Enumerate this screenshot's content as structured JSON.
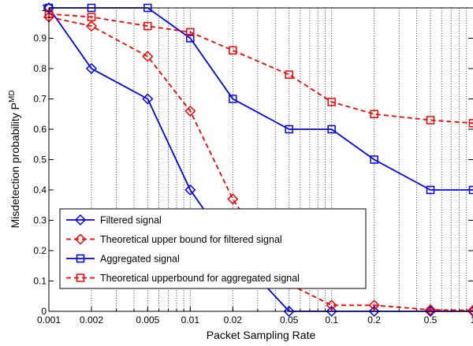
{
  "chart_data": {
    "type": "line",
    "xscale": "log",
    "xlim": [
      0.001,
      1
    ],
    "ylim": [
      0,
      1
    ],
    "grid": "x-major-and-minor-dotted",
    "legend_position": "bottom-left",
    "xlabel": "Packet Sampling Rate",
    "ylabel": "Misdetection probability P",
    "ylabel_superscript": "MD",
    "xticks": [
      0.001,
      0.002,
      0.005,
      0.01,
      0.02,
      0.05,
      0.1,
      0.2,
      0.5,
      1
    ],
    "xtick_labels": [
      "0.001",
      "0.002",
      "0.005",
      "0.01",
      "0.02",
      "0.05",
      "0.1",
      "0.2",
      "0.5",
      "1"
    ],
    "yticks": [
      0,
      0.1,
      0.2,
      0.3,
      0.4,
      0.5,
      0.6,
      0.7,
      0.8,
      0.9,
      1
    ],
    "ytick_labels": [
      "0",
      "0.1",
      "0.2",
      "0.3",
      "0.4",
      "0.5",
      "0.6",
      "0.7",
      "0.8",
      "0.9",
      "1"
    ],
    "x": [
      0.001,
      0.002,
      0.005,
      0.01,
      0.02,
      0.05,
      0.1,
      0.2,
      0.5,
      1
    ],
    "series": [
      {
        "name": "Filtered signal",
        "color": "#0000ff",
        "line_style": "solid",
        "marker": "diamond",
        "values": [
          1.0,
          0.8,
          0.7,
          0.4,
          0.2,
          0.0,
          0.0,
          0.0,
          0.0,
          0.0
        ]
      },
      {
        "name": "Theoretical upper bound for filtered signal",
        "color": "#ff0000",
        "line_style": "dashed",
        "marker": "diamond",
        "values": [
          0.97,
          0.94,
          0.84,
          0.66,
          0.37,
          0.09,
          0.02,
          0.02,
          0.005,
          0.003
        ]
      },
      {
        "name": "Aggregated signal",
        "color": "#0000ff",
        "line_style": "solid",
        "marker": "square",
        "values": [
          1.0,
          1.0,
          1.0,
          0.9,
          0.7,
          0.6,
          0.6,
          0.5,
          0.4,
          0.4
        ]
      },
      {
        "name": "Theoretical upperbound for aggregated signal",
        "color": "#ff0000",
        "line_style": "dashed",
        "marker": "square",
        "values": [
          0.98,
          0.97,
          0.94,
          0.92,
          0.86,
          0.78,
          0.69,
          0.65,
          0.63,
          0.62
        ]
      }
    ]
  }
}
